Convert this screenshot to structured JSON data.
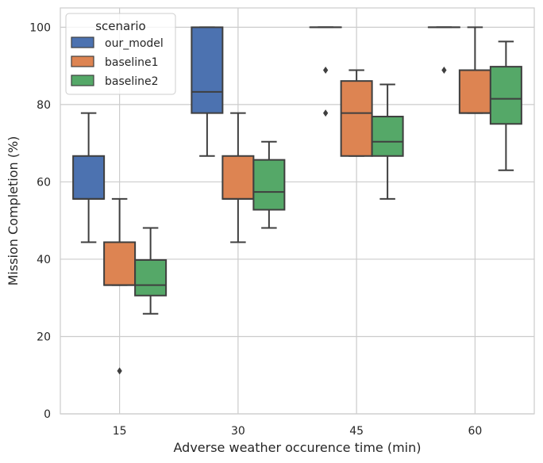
{
  "chart_data": {
    "type": "box",
    "xlabel": "Adverse weather occurence time (min)",
    "ylabel": "Mission Completion (%)",
    "categories": [
      "15",
      "30",
      "45",
      "60"
    ],
    "ylim": [
      0,
      105
    ],
    "yticks": [
      "0",
      "20",
      "40",
      "60",
      "80",
      "100"
    ],
    "grid": true,
    "legend": {
      "title": "scenario",
      "placement": "top-left"
    },
    "series": [
      {
        "name": "our_model",
        "color": "#4c72b0",
        "boxes": [
          {
            "whisker_low": 44.4,
            "q1": 55.6,
            "median": 55.6,
            "q3": 66.7,
            "whisker_high": 77.8,
            "outliers": []
          },
          {
            "whisker_low": 66.7,
            "q1": 77.8,
            "median": 83.3,
            "q3": 100,
            "whisker_high": 100,
            "outliers": []
          },
          {
            "whisker_low": 100,
            "q1": 100,
            "median": 100,
            "q3": 100,
            "whisker_high": 100,
            "outliers": [
              88.9,
              77.8
            ]
          },
          {
            "whisker_low": 100,
            "q1": 100,
            "median": 100,
            "q3": 100,
            "whisker_high": 100,
            "outliers": [
              88.9
            ]
          }
        ]
      },
      {
        "name": "baseline1",
        "color": "#dd8452",
        "boxes": [
          {
            "whisker_low": 33.3,
            "q1": 33.3,
            "median": 33.3,
            "q3": 44.4,
            "whisker_high": 55.6,
            "outliers": [
              11.1
            ]
          },
          {
            "whisker_low": 44.4,
            "q1": 55.6,
            "median": 55.6,
            "q3": 66.7,
            "whisker_high": 77.8,
            "outliers": []
          },
          {
            "whisker_low": 66.7,
            "q1": 66.7,
            "median": 77.8,
            "q3": 86.1,
            "whisker_high": 88.9,
            "outliers": []
          },
          {
            "whisker_low": 77.8,
            "q1": 77.8,
            "median": 77.8,
            "q3": 88.9,
            "whisker_high": 100,
            "outliers": []
          }
        ]
      },
      {
        "name": "baseline2",
        "color": "#55a868",
        "boxes": [
          {
            "whisker_low": 25.9,
            "q1": 30.6,
            "median": 33.3,
            "q3": 39.8,
            "whisker_high": 48.1,
            "outliers": []
          },
          {
            "whisker_low": 48.1,
            "q1": 52.8,
            "median": 57.4,
            "q3": 65.7,
            "whisker_high": 70.4,
            "outliers": []
          },
          {
            "whisker_low": 55.6,
            "q1": 66.7,
            "median": 70.4,
            "q3": 76.9,
            "whisker_high": 85.2,
            "outliers": []
          },
          {
            "whisker_low": 63.0,
            "q1": 75.0,
            "median": 81.5,
            "q3": 89.8,
            "whisker_high": 96.3,
            "outliers": []
          }
        ]
      }
    ]
  }
}
